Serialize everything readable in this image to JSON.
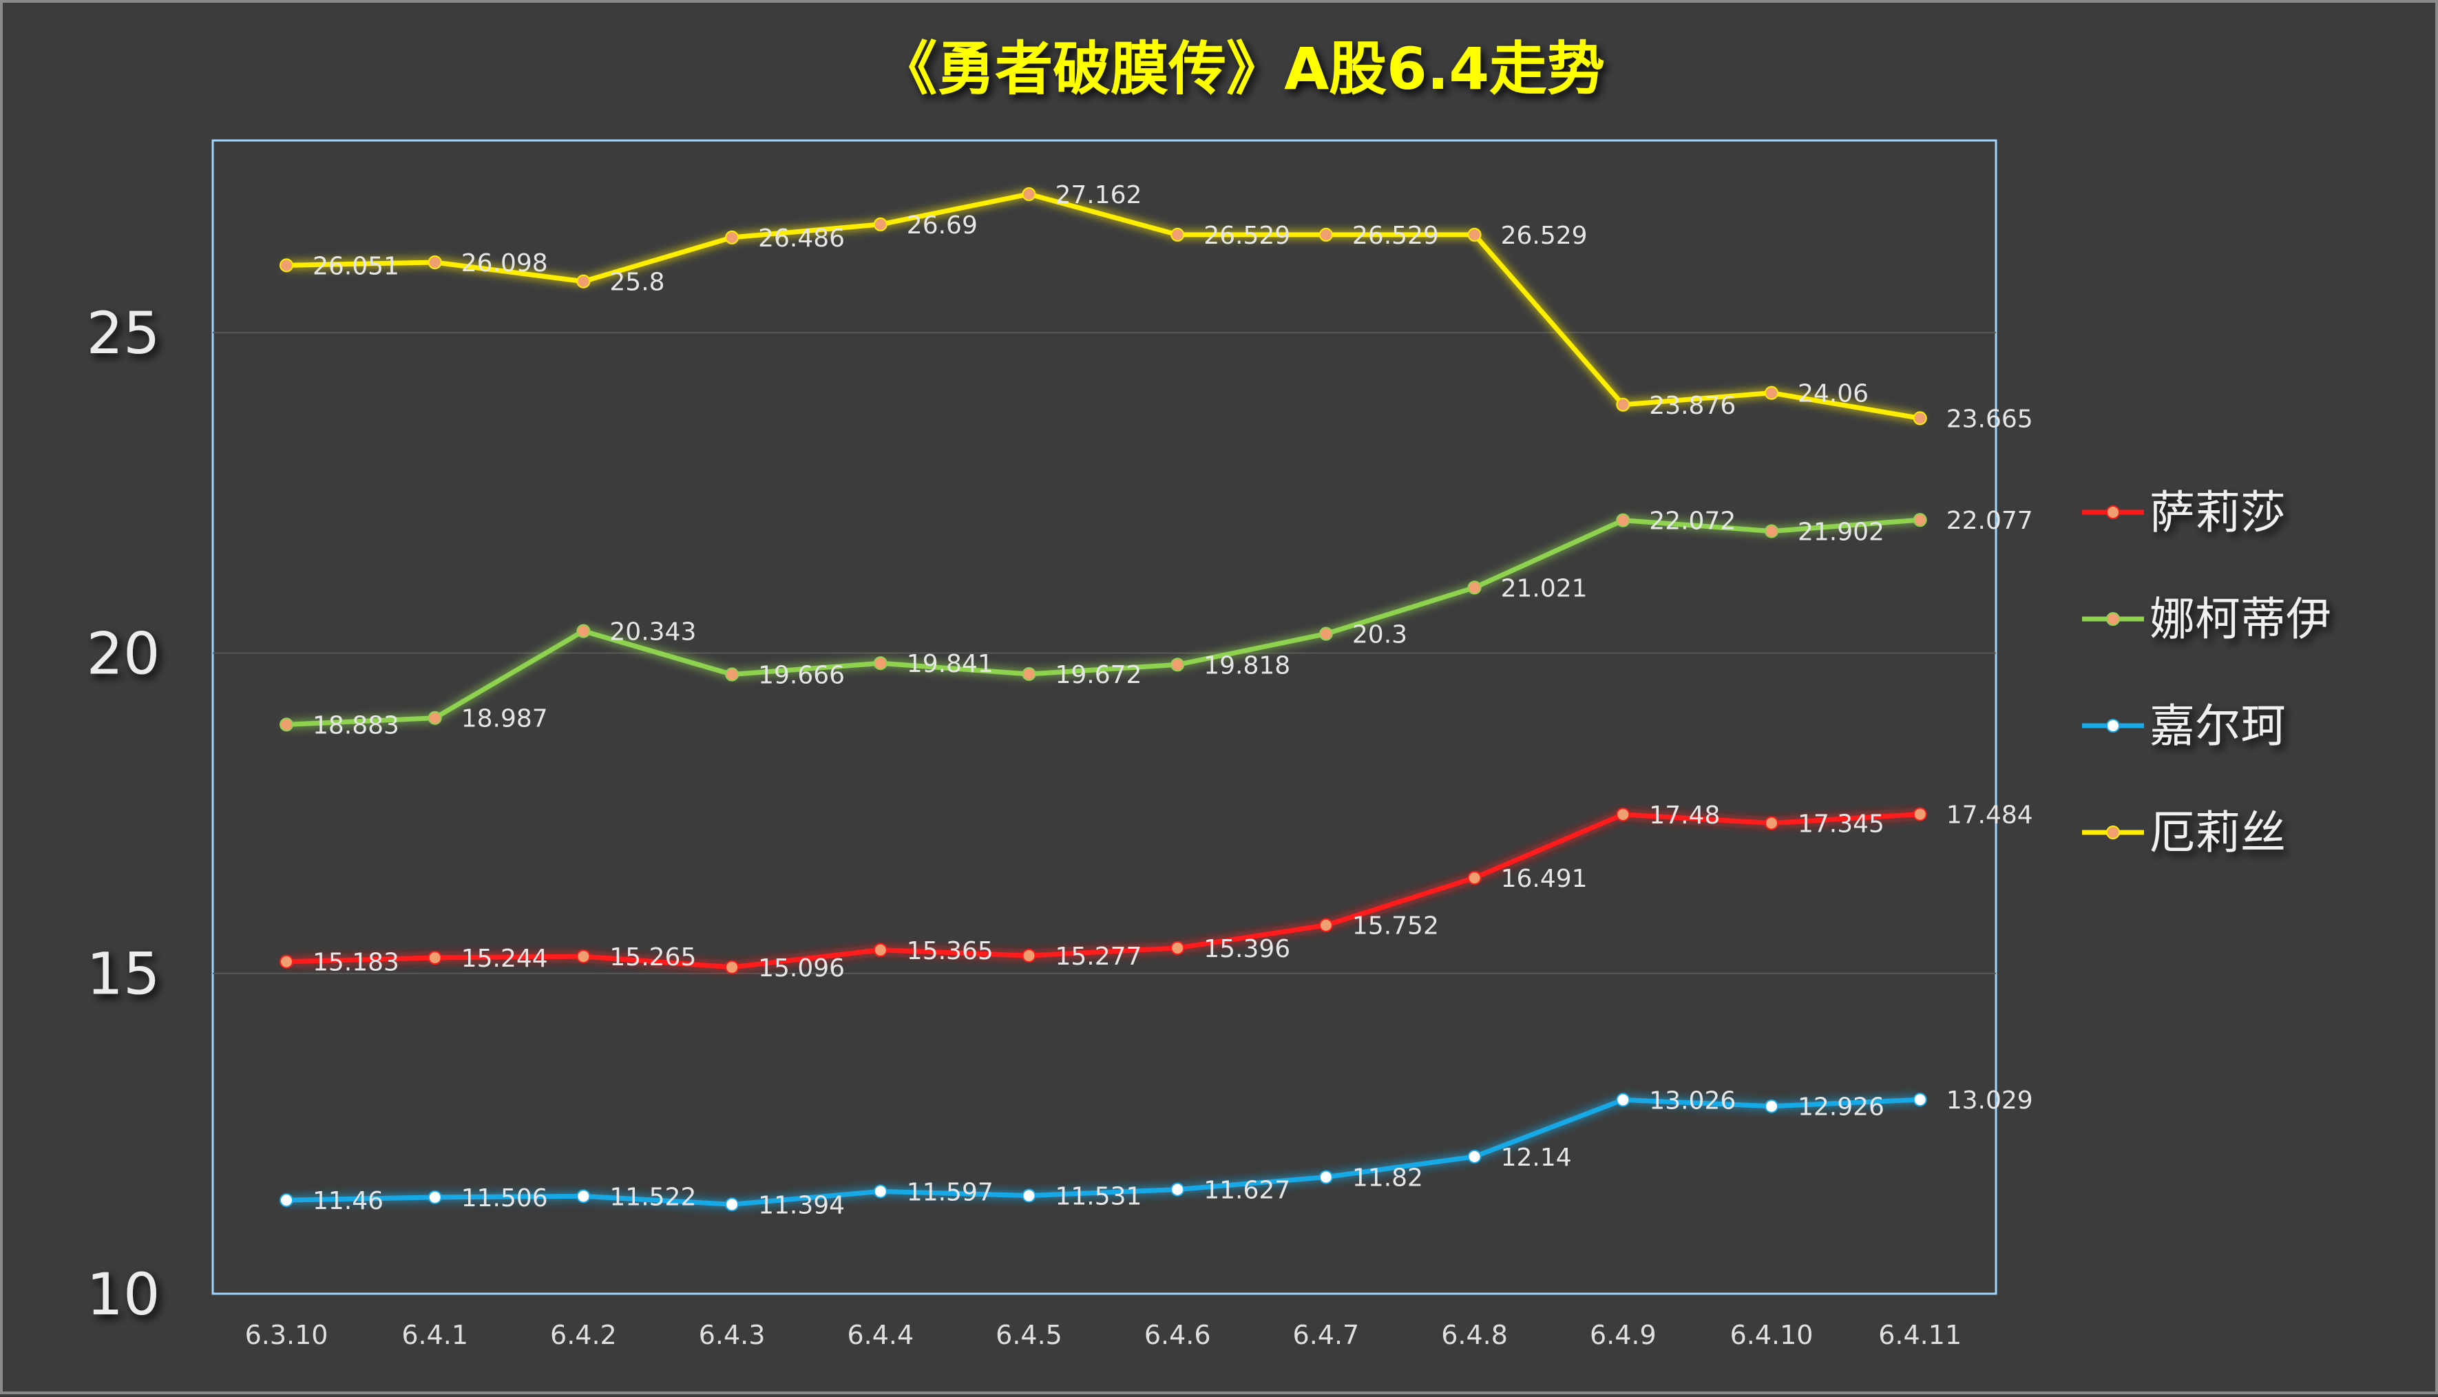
{
  "chart_data": {
    "type": "line",
    "title": "《勇者破膜传》A股6.4走势",
    "categories": [
      "6.3.10",
      "6.4.1",
      "6.4.2",
      "6.4.3",
      "6.4.4",
      "6.4.5",
      "6.4.6",
      "6.4.7",
      "6.4.8",
      "6.4.9",
      "6.4.10",
      "6.4.11"
    ],
    "ylim": [
      10,
      28
    ],
    "yticks": [
      10,
      15,
      20,
      25
    ],
    "grid": true,
    "legend_position": "right",
    "series": [
      {
        "name": "萨莉莎",
        "color": "#ff1a1a",
        "marker": "#f0a070",
        "values": [
          15.183,
          15.244,
          15.265,
          15.096,
          15.365,
          15.277,
          15.396,
          15.752,
          16.491,
          17.48,
          17.345,
          17.484
        ]
      },
      {
        "name": "娜柯蒂伊",
        "color": "#8ed24f",
        "marker": "#f0a070",
        "values": [
          18.883,
          18.987,
          20.343,
          19.666,
          19.841,
          19.672,
          19.818,
          20.3,
          21.021,
          22.072,
          21.902,
          22.077
        ]
      },
      {
        "name": "嘉尔珂",
        "color": "#19a9e6",
        "marker": "#ffffff",
        "values": [
          11.46,
          11.506,
          11.522,
          11.394,
          11.597,
          11.531,
          11.627,
          11.82,
          12.14,
          13.026,
          12.926,
          13.029
        ]
      },
      {
        "name": "厄莉丝",
        "color": "#ffee00",
        "marker": "#f0a070",
        "values": [
          26.051,
          26.098,
          25.8,
          26.486,
          26.69,
          27.162,
          26.529,
          26.529,
          26.529,
          23.876,
          24.06,
          23.665
        ]
      }
    ]
  }
}
